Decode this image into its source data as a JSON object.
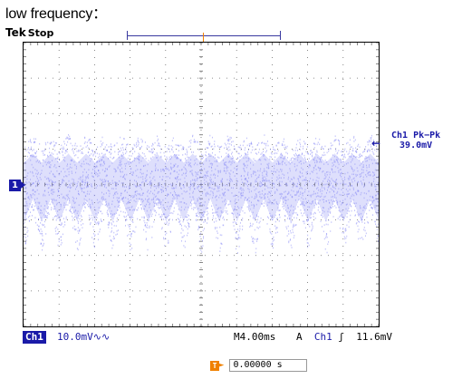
{
  "caption": "low frequency：",
  "scope": {
    "brand": "Tek",
    "state": "Stop",
    "trigger_marker_label": "T",
    "channel_marker_label": "1",
    "measurement": {
      "label": "Ch1 Pk−Pk",
      "value": "39.0mV"
    },
    "status_bar": {
      "channel": "Ch1",
      "scale": "10.0mV",
      "bandwidth_icon": "∿∿",
      "timebase_prefix": "M",
      "timebase": "4.00ms",
      "trigger_mode": "A",
      "trigger_source": "Ch1",
      "trigger_slope_icon": "rising-edge-icon",
      "trigger_level": "11.6mV"
    },
    "trigger_offset": {
      "marker": "T",
      "value": "0.00000 s"
    },
    "colors": {
      "waveform": "#8a8cf5",
      "channel": "#1a1aa8",
      "trigger": "#f08000",
      "grid": "#6a6a6a"
    }
  }
}
